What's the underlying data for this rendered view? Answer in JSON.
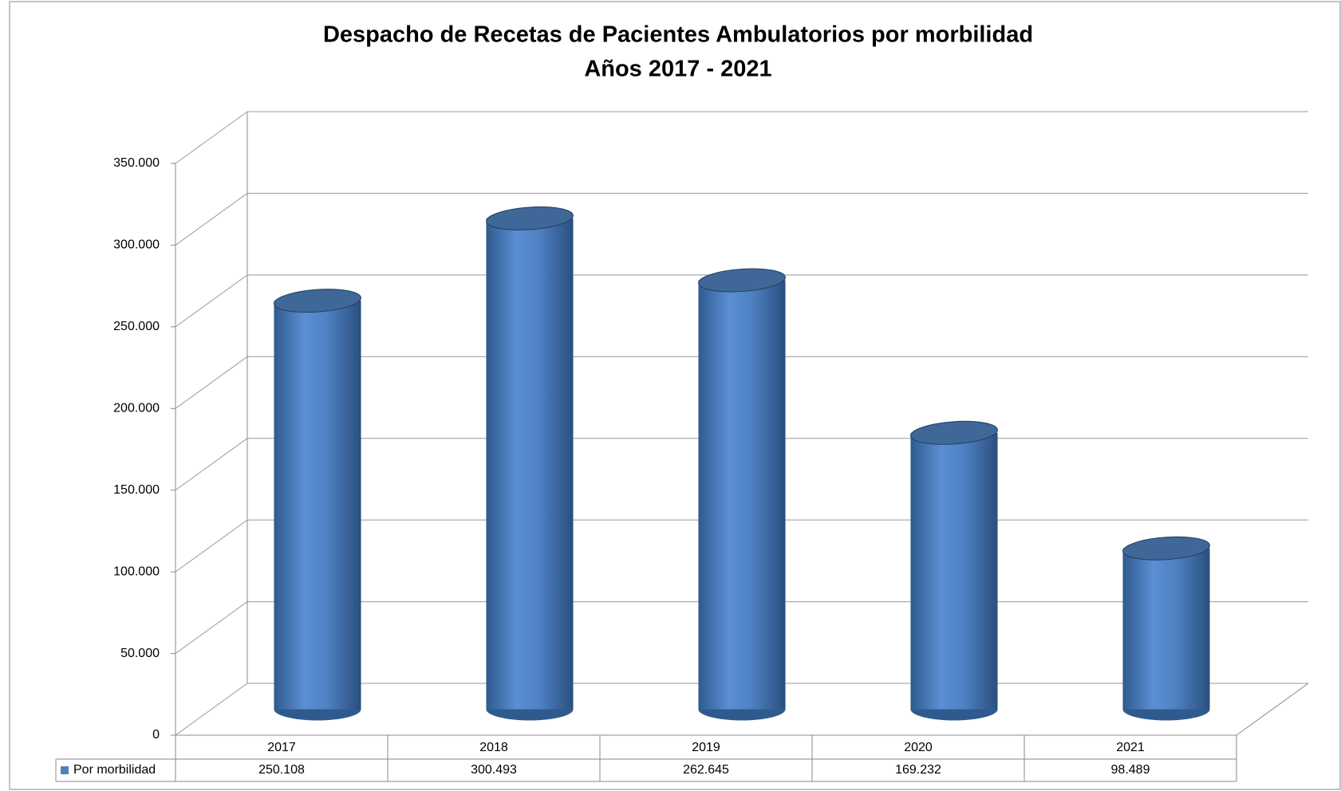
{
  "chart_data": {
    "type": "bar3d",
    "title": "Despacho de Recetas de Pacientes Ambulatorios por morbilidad",
    "subtitle": "Años 2017 - 2021",
    "categories": [
      "2017",
      "2018",
      "2019",
      "2020",
      "2021"
    ],
    "series": [
      {
        "name": "Por morbilidad",
        "color": "#4f81bd",
        "values": [
          250108,
          300493,
          262645,
          169232,
          98489
        ],
        "value_labels": [
          "250.108",
          "300.493",
          "262.645",
          "169.232",
          "98.489"
        ]
      }
    ],
    "ylim": [
      0,
      350000
    ],
    "yticks": [
      0,
      {
        "value": 50000,
        "label": "50.000"
      },
      {
        "value": 100000,
        "label": "100.000"
      },
      {
        "value": 150000,
        "label": "150.000"
      },
      {
        "value": 200000,
        "label": "200.000"
      },
      {
        "value": 250000,
        "label": "250.000"
      },
      {
        "value": 300000,
        "label": "300.000"
      },
      {
        "value": 350000,
        "label": "350.000"
      }
    ],
    "grid": true
  }
}
